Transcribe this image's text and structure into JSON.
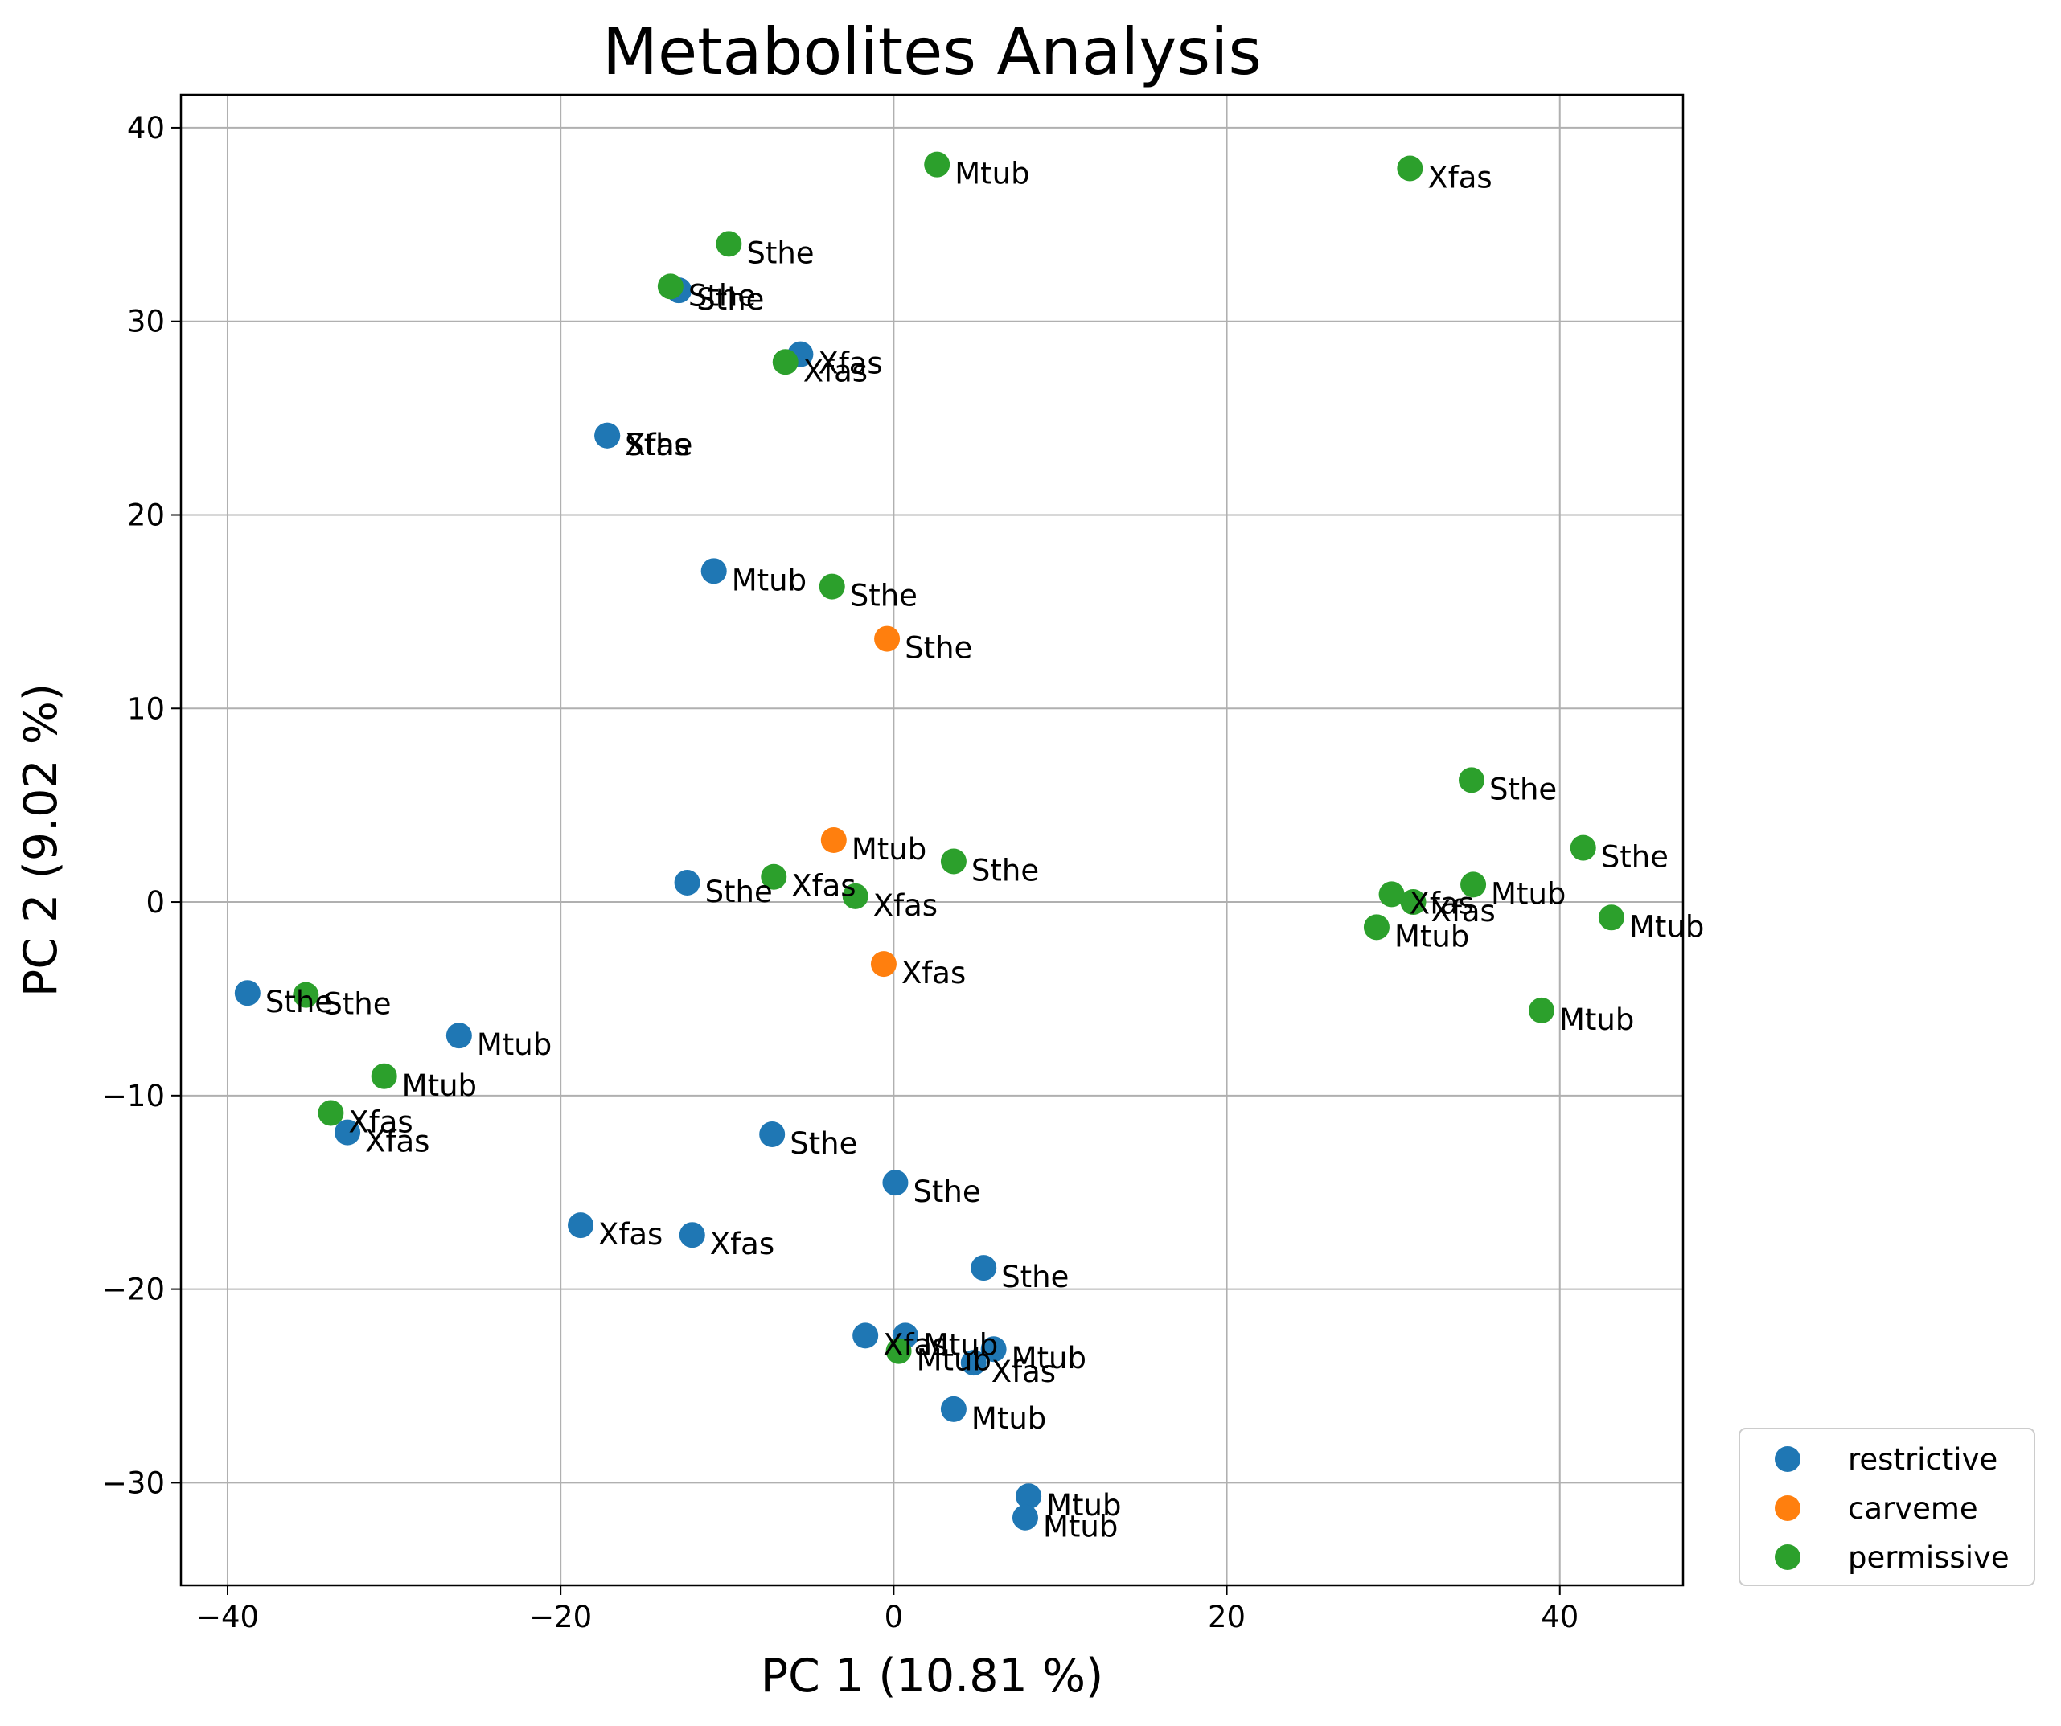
{
  "chart_data": {
    "type": "scatter",
    "title": "Metabolites Analysis",
    "xlabel": "PC 1 (10.81 %)",
    "ylabel": "PC 2 (9.02 %)",
    "xlim": [
      -42.8,
      47.4
    ],
    "ylim": [
      -35.3,
      41.7
    ],
    "xticks": [
      -40,
      -20,
      0,
      20,
      40
    ],
    "xtick_labels": [
      "−40",
      "−20",
      "0",
      "20",
      "40"
    ],
    "yticks": [
      -30,
      -20,
      -10,
      0,
      10,
      20,
      30,
      40
    ],
    "ytick_labels": [
      "−30",
      "−20",
      "−10",
      "0",
      "10",
      "20",
      "30",
      "40"
    ],
    "grid": true,
    "legend_position": "outside-bottom-right",
    "series": [
      {
        "name": "restrictive",
        "color": "#1f77b4",
        "points": [
          {
            "x": -12.9,
            "y": 31.6,
            "label": "Sthe"
          },
          {
            "x": -5.6,
            "y": 28.3,
            "label": "Xfas"
          },
          {
            "x": -17.2,
            "y": 24.1,
            "label": "Sthe"
          },
          {
            "x": -17.2,
            "y": 24.1,
            "label": "Xfas"
          },
          {
            "x": -10.8,
            "y": 17.1,
            "label": "Mtub"
          },
          {
            "x": -12.4,
            "y": 1.0,
            "label": "Sthe"
          },
          {
            "x": -38.8,
            "y": -4.7,
            "label": "Sthe"
          },
          {
            "x": -26.1,
            "y": -6.9,
            "label": "Mtub"
          },
          {
            "x": -32.8,
            "y": -11.9,
            "label": "Xfas"
          },
          {
            "x": -7.3,
            "y": -12.0,
            "label": "Sthe"
          },
          {
            "x": 0.1,
            "y": -14.5,
            "label": "Sthe"
          },
          {
            "x": -18.8,
            "y": -16.7,
            "label": "Xfas"
          },
          {
            "x": -12.1,
            "y": -17.2,
            "label": "Xfas"
          },
          {
            "x": 5.4,
            "y": -18.9,
            "label": "Sthe"
          },
          {
            "x": -1.7,
            "y": -22.4,
            "label": "Xfas"
          },
          {
            "x": 0.7,
            "y": -22.4,
            "label": "Mtub"
          },
          {
            "x": 6.0,
            "y": -23.1,
            "label": "Mtub"
          },
          {
            "x": 4.8,
            "y": -23.8,
            "label": "Xfas"
          },
          {
            "x": 3.6,
            "y": -26.2,
            "label": "Mtub"
          },
          {
            "x": 8.1,
            "y": -30.7,
            "label": "Mtub"
          },
          {
            "x": 7.9,
            "y": -31.8,
            "label": "Mtub"
          }
        ]
      },
      {
        "name": "carveme",
        "color": "#ff7f0e",
        "points": [
          {
            "x": -0.4,
            "y": 13.6,
            "label": "Sthe"
          },
          {
            "x": -3.6,
            "y": 3.2,
            "label": "Mtub"
          },
          {
            "x": -0.6,
            "y": -3.2,
            "label": "Xfas"
          }
        ]
      },
      {
        "name": "permissive",
        "color": "#2ca02c",
        "points": [
          {
            "x": 2.6,
            "y": 38.1,
            "label": "Mtub"
          },
          {
            "x": 31.0,
            "y": 37.9,
            "label": "Xfas"
          },
          {
            "x": -9.9,
            "y": 34.0,
            "label": "Sthe"
          },
          {
            "x": -13.4,
            "y": 31.8,
            "label": "Sthe"
          },
          {
            "x": -6.5,
            "y": 27.9,
            "label": "Xfas"
          },
          {
            "x": -3.7,
            "y": 16.3,
            "label": "Sthe"
          },
          {
            "x": 34.7,
            "y": 6.3,
            "label": "Sthe"
          },
          {
            "x": 41.4,
            "y": 2.8,
            "label": "Sthe"
          },
          {
            "x": 3.6,
            "y": 2.1,
            "label": "Sthe"
          },
          {
            "x": -7.2,
            "y": 1.3,
            "label": "Xfas"
          },
          {
            "x": 34.8,
            "y": 0.9,
            "label": "Mtub"
          },
          {
            "x": 29.9,
            "y": 0.4,
            "label": "Xfas"
          },
          {
            "x": 31.2,
            "y": 0.0,
            "label": "Xfas"
          },
          {
            "x": -2.3,
            "y": 0.3,
            "label": "Xfas"
          },
          {
            "x": 43.1,
            "y": -0.8,
            "label": "Mtub"
          },
          {
            "x": 29.0,
            "y": -1.3,
            "label": "Mtub"
          },
          {
            "x": -35.3,
            "y": -4.8,
            "label": "Sthe"
          },
          {
            "x": 38.9,
            "y": -5.6,
            "label": "Mtub"
          },
          {
            "x": -30.6,
            "y": -9.0,
            "label": "Mtub"
          },
          {
            "x": -33.8,
            "y": -10.9,
            "label": "Xfas"
          },
          {
            "x": 0.3,
            "y": -23.2,
            "label": "Mtub"
          }
        ]
      }
    ]
  }
}
